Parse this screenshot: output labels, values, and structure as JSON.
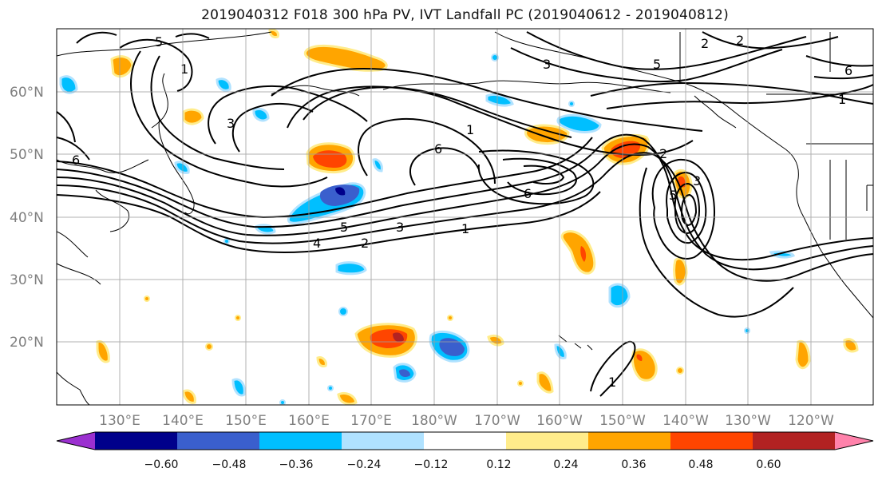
{
  "title": "2019040312 F018 300 hPa PV, IVT Landfall PC (2019040612 - 2019040812)",
  "lat_labels": [
    "60°N",
    "50°N",
    "40°N",
    "30°N",
    "20°N"
  ],
  "lon_labels": [
    "130°E",
    "140°E",
    "150°E",
    "160°E",
    "170°E",
    "180°W",
    "170°W",
    "160°W",
    "150°W",
    "140°W",
    "130°W",
    "120°W"
  ],
  "colorbar": {
    "tick_labels": [
      "−0.60",
      "−0.48",
      "−0.36",
      "−0.24",
      "−0.12",
      "0.12",
      "0.24",
      "0.36",
      "0.48",
      "0.60"
    ],
    "colors": [
      "#9b30d0",
      "#00008b",
      "#3a5fcd",
      "#00bfff",
      "#b0e2ff",
      "#ffffff",
      "#ffec8b",
      "#ffa500",
      "#ff4500",
      "#b22222",
      "#ff82ab"
    ]
  },
  "contour_labels": [
    "1",
    "2",
    "3",
    "4",
    "5",
    "6",
    "1",
    "2",
    "3",
    "5",
    "6",
    "1",
    "2",
    "5",
    "6",
    "1",
    "2",
    "3",
    "1",
    "3",
    "5",
    "6"
  ],
  "colors": {
    "positive_light": "#ffec8b",
    "positive_mid": "#ffa500",
    "positive_strong": "#ff4500",
    "positive_max": "#b22222",
    "negative_light": "#b0e2ff",
    "negative_mid": "#00bfff",
    "negative_strong": "#3a5fcd",
    "negative_max": "#00008b"
  }
}
